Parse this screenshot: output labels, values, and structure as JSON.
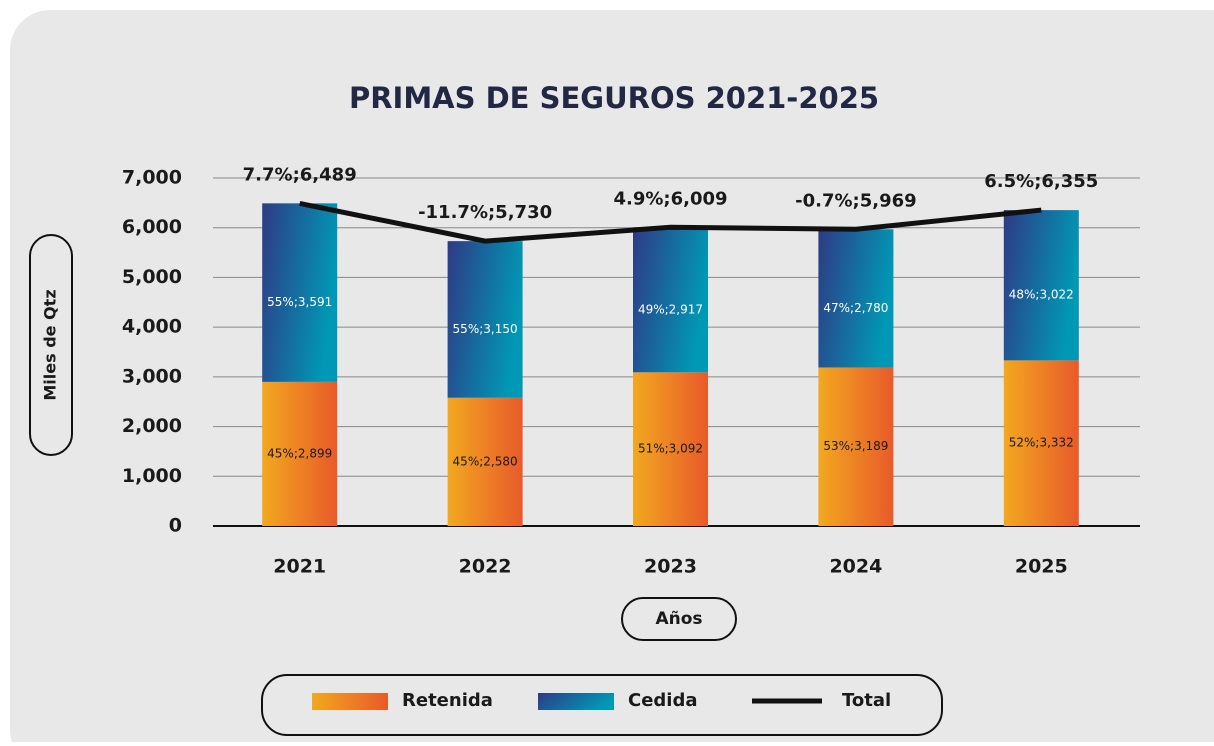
{
  "chart_data": {
    "type": "stacked_bar_line",
    "title": "PRIMAS DE SEGUROS 2021-2025",
    "y_label": "Miles de Qtz",
    "x_label": "Años",
    "categories": [
      "2021",
      "2022",
      "2023",
      "2024",
      "2025"
    ],
    "series": [
      {
        "name": "Retenida",
        "color": [
          "#f2a81f",
          "#e85a2a"
        ],
        "values": [
          2899,
          2580,
          3092,
          3189,
          3332
        ],
        "value_labels": [
          "45%;2,899",
          "45%;2,580",
          "51%;3,092",
          "53%;3,189",
          "52%;3,332"
        ]
      },
      {
        "name": "Cedida",
        "color": [
          "#2e3a86",
          "#0098b4"
        ],
        "values": [
          3591,
          3150,
          2917,
          2780,
          3022
        ],
        "value_labels": [
          "55%;3,591",
          "55%;3,150",
          "49%;2,917",
          "47%;2,780",
          "48%;3,022"
        ]
      },
      {
        "name": "Total",
        "type": "line",
        "color": "#111111",
        "values": [
          6489,
          5730,
          6009,
          5969,
          6355
        ],
        "value_labels": [
          "7.7%;6,489",
          "-11.7%;5,730",
          "4.9%;6,009",
          "-0.7%;5,969",
          "6.5%;6,355"
        ]
      }
    ],
    "ylim": [
      0,
      7000
    ],
    "yticks": [
      0,
      {
        "value": 1000,
        "label": "1,000"
      },
      {
        "value": 2000,
        "label": "2,000"
      },
      {
        "value": 3000,
        "label": "3,000"
      },
      {
        "value": 4000,
        "label": "4,000"
      },
      {
        "value": 5000,
        "label": "5,000"
      },
      {
        "value": 6000,
        "label": "6,000"
      },
      {
        "value": 7000,
        "label": "7,000"
      }
    ],
    "grid": true,
    "legend": "bottom"
  }
}
